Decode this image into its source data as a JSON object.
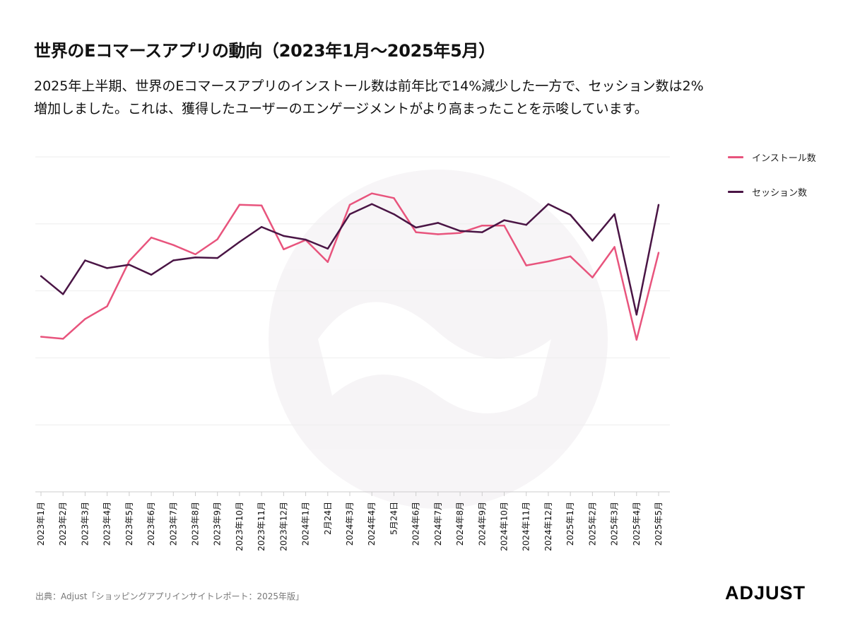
{
  "title": "世界のEコマースアプリの動向（2023年1月〜2025年5月）",
  "subtitle_lines": [
    "2025年上半期、世界のEコマースアプリのインストール数は前年比で14%減少した一方で、セッション数は2%",
    "増加しました。これは、獲得したユーザーのエンゲージメントがより高まったことを示唆しています。"
  ],
  "source": "出典：Adjust「ショッピングアプリインサイトレポート：2025年版」",
  "logo": "ADJUST",
  "colors": {
    "installs": "#e8547d",
    "sessions": "#4a1545",
    "grid": "#eeeeee",
    "axis": "#cccccc"
  },
  "chart_data": {
    "type": "line",
    "title": "",
    "xlabel": "",
    "ylabel": "",
    "ylim": [
      0,
      100
    ],
    "grid": true,
    "legend_position": "top-right",
    "categories": [
      "2023年1月",
      "2023年2月",
      "2023年3月",
      "2023年4月",
      "2023年5月",
      "2023年6月",
      "2023年7月",
      "2023年8月",
      "2023年9月",
      "2023年10月",
      "2023年11月",
      "2023年12月",
      "2024年1月",
      "2月24日",
      "2024年3月",
      "2024年4月",
      "5月24日",
      "2024年6月",
      "2024年7月",
      "2024年8月",
      "2024年9月",
      "2024年10月",
      "2024年11月",
      "2024年12月",
      "2025年1月",
      "2025年2月",
      "2025年3月",
      "2025年4月",
      "2025年5月"
    ],
    "series": [
      {
        "name": "インストール数",
        "color": "#e8547d",
        "values": [
          46.3,
          45.7,
          51.6,
          55.4,
          68.9,
          75.9,
          73.7,
          70.9,
          75.4,
          85.7,
          85.5,
          72.4,
          75.2,
          68.6,
          85.7,
          89.1,
          87.7,
          77.5,
          76.9,
          77.3,
          79.5,
          79.5,
          67.6,
          68.8,
          70.3,
          64.0,
          73.1,
          45.4,
          71.4
        ]
      },
      {
        "name": "セッション数",
        "color": "#4a1545",
        "values": [
          64.4,
          59.0,
          69.1,
          66.8,
          67.8,
          64.8,
          69.1,
          70.0,
          69.8,
          74.6,
          79.1,
          76.4,
          75.3,
          72.6,
          82.9,
          85.9,
          82.9,
          78.9,
          80.3,
          77.9,
          77.5,
          81.1,
          79.7,
          85.9,
          82.7,
          75.0,
          82.9,
          52.9,
          85.7
        ]
      }
    ]
  }
}
